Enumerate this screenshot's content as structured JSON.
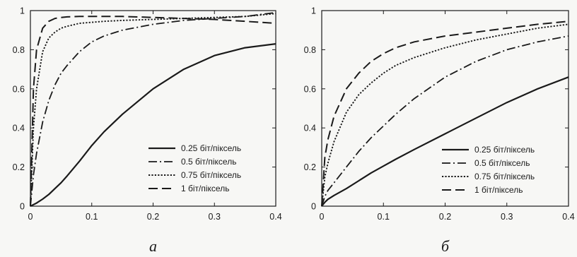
{
  "chart_data": [
    {
      "type": "line",
      "panel_label": "а",
      "xlim": [
        0,
        0.4
      ],
      "ylim": [
        0,
        1
      ],
      "x_ticks": [
        0,
        0.1,
        0.2,
        0.3,
        0.4
      ],
      "x_tick_labels": [
        "0",
        "0.1",
        "0.2",
        "0.3",
        "0.4"
      ],
      "y_ticks": [
        0,
        0.2,
        0.4,
        0.6,
        0.8,
        1
      ],
      "y_tick_labels": [
        "0",
        "0.2",
        "0.4",
        "0.6",
        "0.8",
        "1"
      ],
      "grid": false,
      "legend_position": "bottom-right",
      "x": [
        0,
        0.005,
        0.01,
        0.02,
        0.03,
        0.04,
        0.05,
        0.06,
        0.08,
        0.1,
        0.12,
        0.15,
        0.2,
        0.25,
        0.3,
        0.35,
        0.4
      ],
      "series": [
        {
          "name": "0.25 біт/піксель",
          "dash": "solid",
          "values": [
            0,
            0.008,
            0.016,
            0.036,
            0.06,
            0.09,
            0.12,
            0.155,
            0.23,
            0.31,
            0.38,
            0.47,
            0.6,
            0.7,
            0.77,
            0.81,
            0.83
          ]
        },
        {
          "name": "0.5 біт/піксель",
          "dash": "dash-dot",
          "values": [
            0,
            0.16,
            0.27,
            0.43,
            0.54,
            0.62,
            0.68,
            0.72,
            0.79,
            0.84,
            0.87,
            0.9,
            0.93,
            0.95,
            0.96,
            0.97,
            0.99
          ]
        },
        {
          "name": "0.75 біт/піксель",
          "dash": "dotted",
          "values": [
            0,
            0.4,
            0.6,
            0.79,
            0.86,
            0.89,
            0.91,
            0.92,
            0.935,
            0.94,
            0.945,
            0.95,
            0.955,
            0.96,
            0.965,
            0.97,
            0.985
          ]
        },
        {
          "name": "1 біт/піксель",
          "dash": "dashed",
          "values": [
            0,
            0.6,
            0.8,
            0.91,
            0.945,
            0.96,
            0.965,
            0.968,
            0.97,
            0.97,
            0.97,
            0.97,
            0.965,
            0.96,
            0.955,
            0.945,
            0.935
          ]
        }
      ]
    },
    {
      "type": "line",
      "panel_label": "б",
      "xlim": [
        0,
        0.4
      ],
      "ylim": [
        0,
        1
      ],
      "x_ticks": [
        0,
        0.1,
        0.2,
        0.3,
        0.4
      ],
      "x_tick_labels": [
        "0",
        "0.1",
        "0.2",
        "0.3",
        "0.4"
      ],
      "y_ticks": [
        0,
        0.2,
        0.4,
        0.6,
        0.8,
        1
      ],
      "y_tick_labels": [
        "0",
        "0.2",
        "0.4",
        "0.6",
        "0.8",
        "1"
      ],
      "grid": false,
      "legend_position": "bottom-right",
      "x": [
        0,
        0.005,
        0.01,
        0.02,
        0.04,
        0.06,
        0.08,
        0.1,
        0.12,
        0.15,
        0.2,
        0.25,
        0.3,
        0.35,
        0.4
      ],
      "series": [
        {
          "name": "0.25 біт/піксель",
          "dash": "solid",
          "values": [
            0,
            0.02,
            0.035,
            0.055,
            0.09,
            0.13,
            0.17,
            0.205,
            0.24,
            0.29,
            0.37,
            0.45,
            0.53,
            0.6,
            0.66
          ]
        },
        {
          "name": "0.5 біт/піксель",
          "dash": "dash-dot",
          "values": [
            0,
            0.05,
            0.08,
            0.12,
            0.2,
            0.28,
            0.35,
            0.41,
            0.47,
            0.55,
            0.66,
            0.74,
            0.8,
            0.84,
            0.87
          ]
        },
        {
          "name": "0.75 біт/піксель",
          "dash": "dotted",
          "values": [
            0,
            0.15,
            0.22,
            0.33,
            0.48,
            0.57,
            0.63,
            0.68,
            0.72,
            0.76,
            0.81,
            0.85,
            0.88,
            0.91,
            0.93
          ]
        },
        {
          "name": "1 біт/піксель",
          "dash": "dashed",
          "values": [
            0,
            0.25,
            0.34,
            0.46,
            0.6,
            0.68,
            0.74,
            0.78,
            0.81,
            0.84,
            0.87,
            0.89,
            0.91,
            0.93,
            0.945
          ]
        }
      ]
    }
  ]
}
